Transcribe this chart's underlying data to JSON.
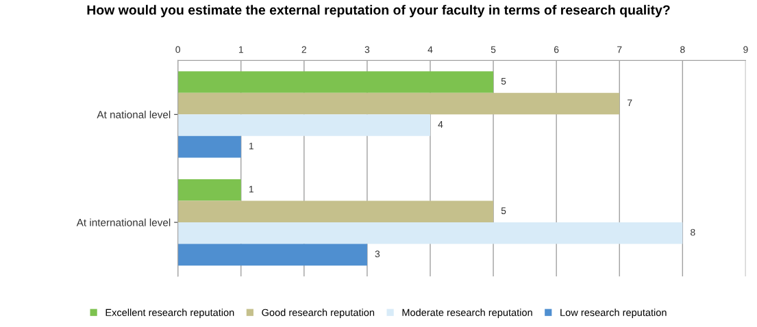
{
  "chart_data": {
    "type": "bar",
    "orientation": "horizontal",
    "title": "How would you estimate the external reputation of your faculty in terms of research quality?",
    "categories": [
      "At national level",
      "At international level"
    ],
    "series": [
      {
        "name": "Excellent research reputation",
        "color": "#7dc24f",
        "values": [
          5,
          1
        ]
      },
      {
        "name": "Good research reputation",
        "color": "#c5c08c",
        "values": [
          7,
          5
        ]
      },
      {
        "name": "Moderate research reputation",
        "color": "#d8ebf8",
        "values": [
          4,
          8
        ]
      },
      {
        "name": "Low research reputation",
        "color": "#4f8fd0",
        "values": [
          1,
          3
        ]
      }
    ],
    "xlim": [
      0,
      9
    ],
    "xticks": [
      0,
      1,
      2,
      3,
      4,
      5,
      6,
      7,
      8,
      9
    ],
    "grid": "x",
    "data_labels": true,
    "legend": "bottom"
  }
}
